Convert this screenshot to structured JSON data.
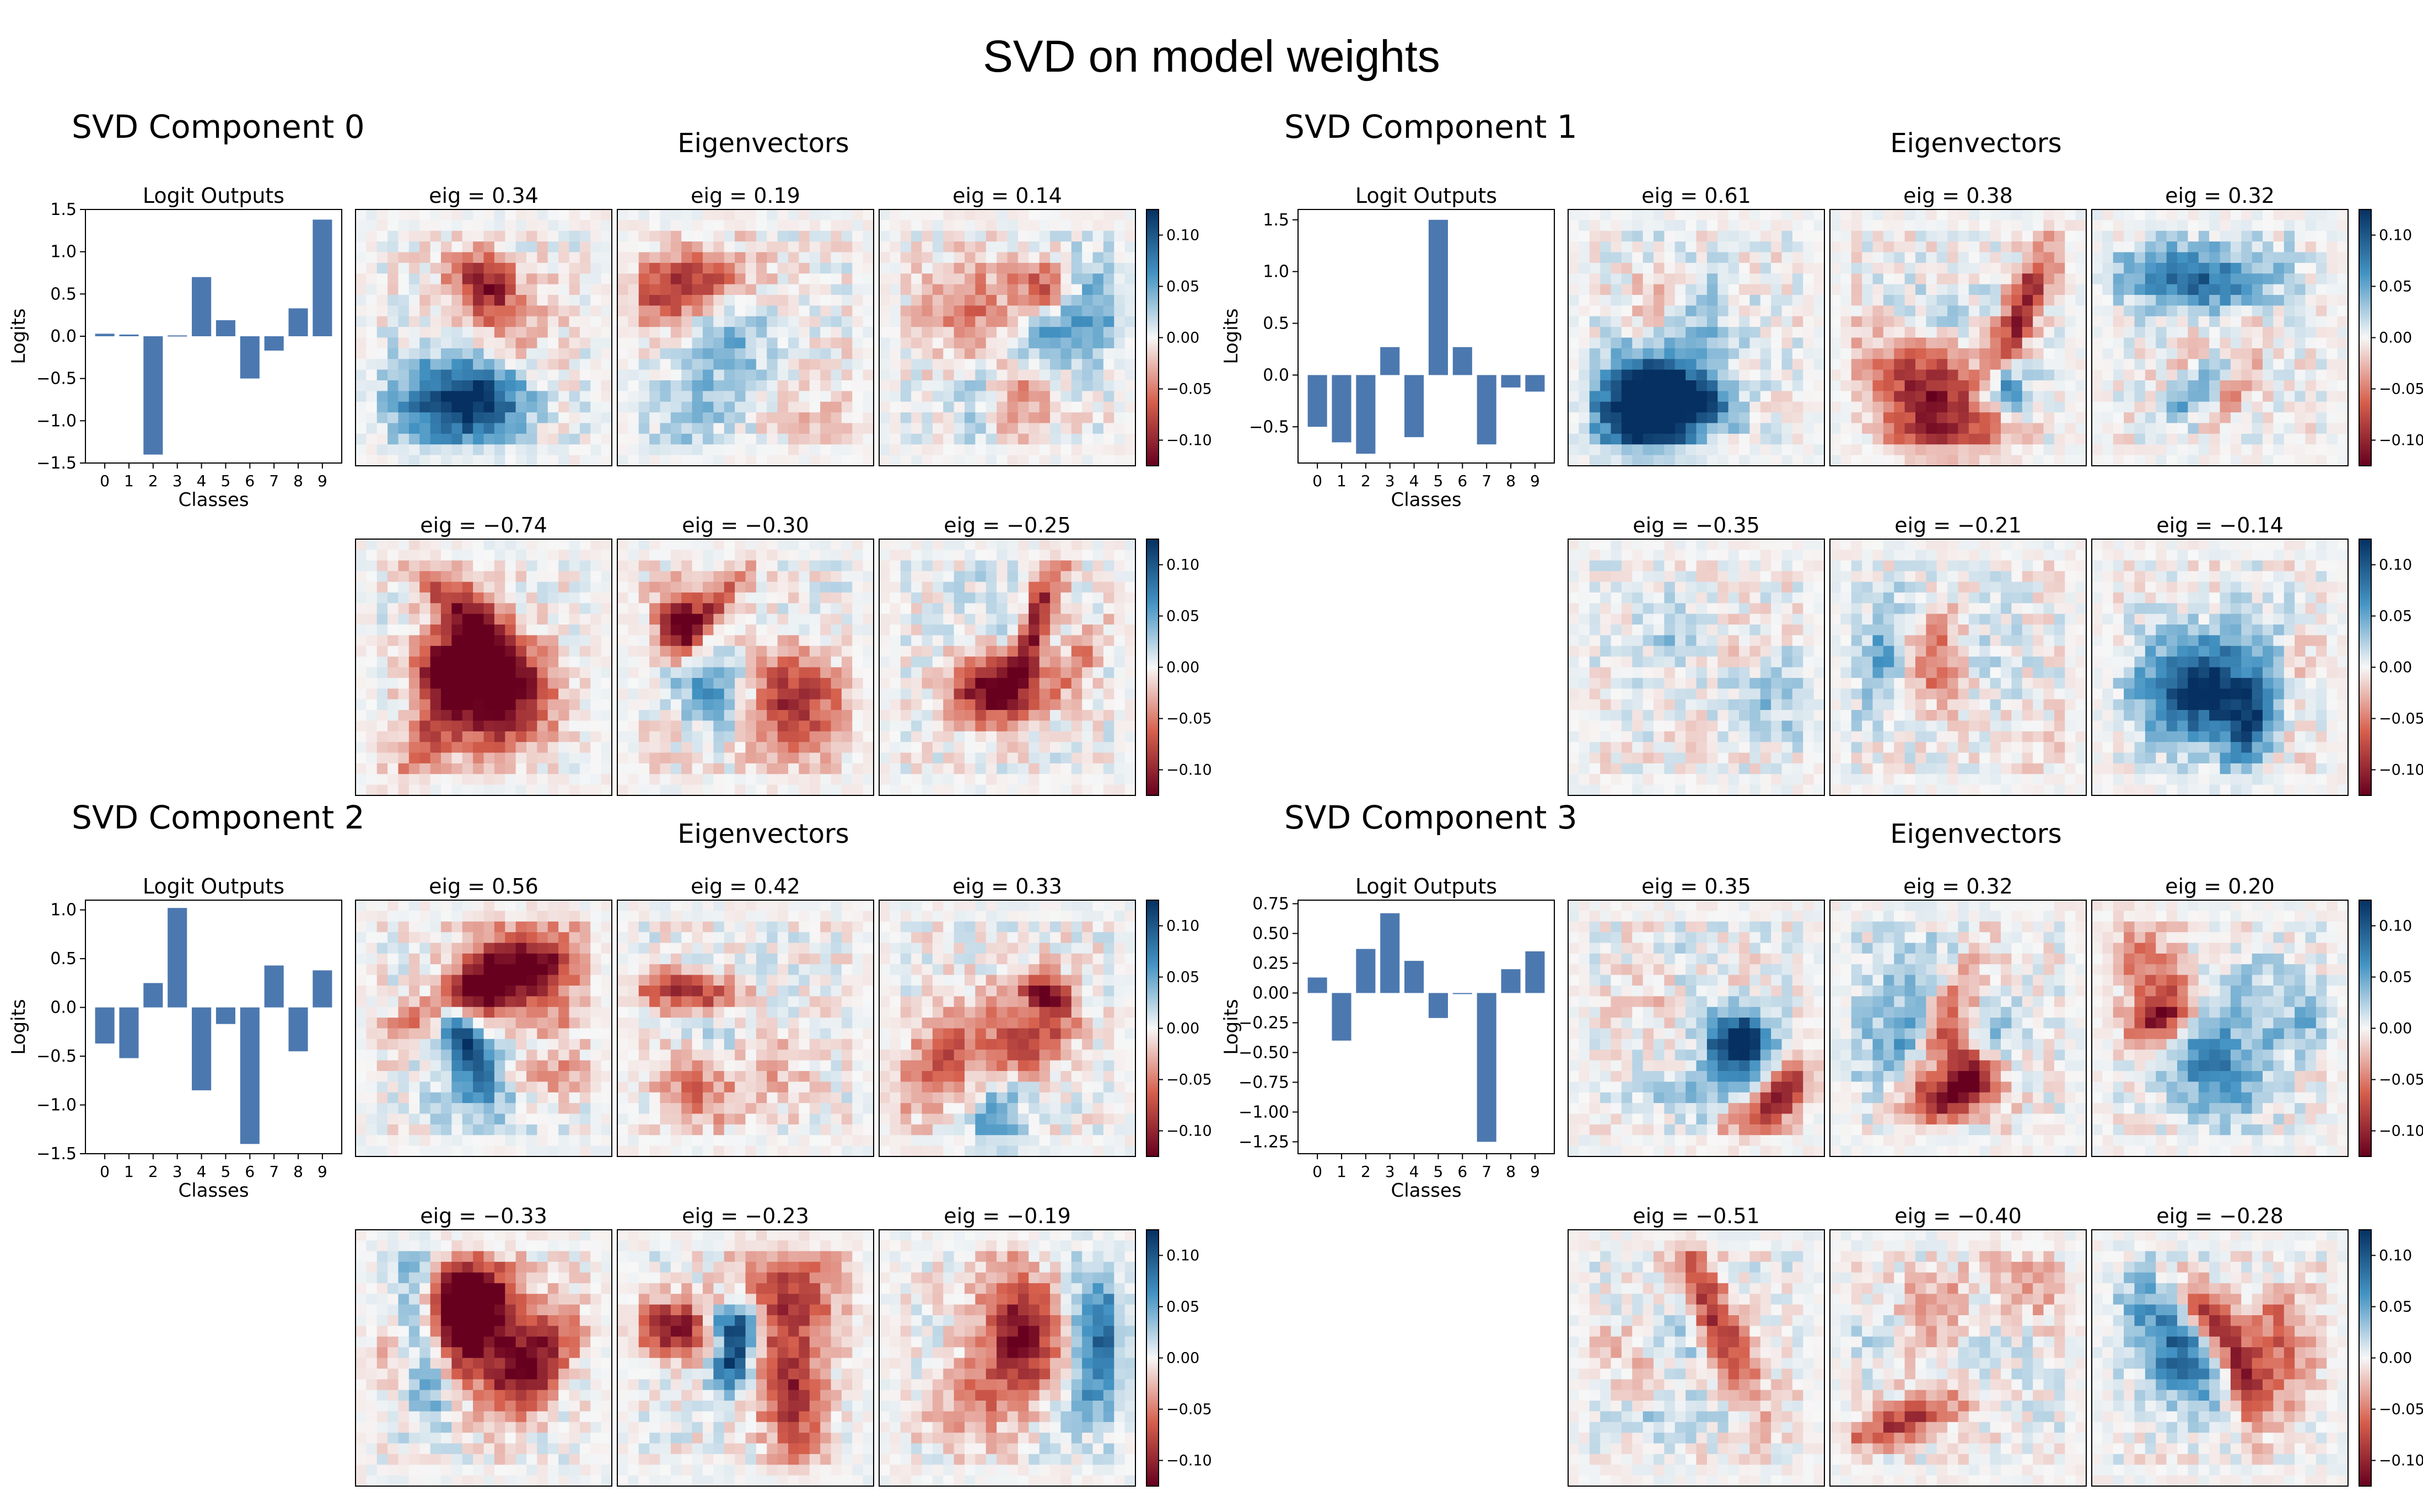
{
  "figure": {
    "title": "SVD on model weights"
  },
  "labels": {
    "eigenvectors_title": "Eigenvectors",
    "logit_title": "Logit Outputs",
    "xlabel": "Classes",
    "ylabel": "Logits",
    "eig_prefix": "eig = "
  },
  "colormap": {
    "name": "RdBu",
    "negative": "#67001f",
    "neutral": "#f7f7f7",
    "positive": "#053061",
    "range": [
      -0.125,
      0.125
    ],
    "ticks": [
      "0.10",
      "0.05",
      "0.00",
      "−0.05",
      "−0.10"
    ],
    "tick_values": [
      0.1,
      0.05,
      0.0,
      -0.05,
      -0.1
    ]
  },
  "chart_data": [
    {
      "type": "bar",
      "title": "SVD Component 0",
      "subtitle": "Logit Outputs",
      "xlabel": "Classes",
      "ylabel": "Logits",
      "categories": [
        "0",
        "1",
        "2",
        "3",
        "4",
        "5",
        "6",
        "7",
        "8",
        "9"
      ],
      "values": [
        0.03,
        0.02,
        -1.4,
        0.01,
        0.7,
        0.19,
        -0.5,
        -0.17,
        0.33,
        1.38
      ],
      "ylim": [
        -1.5,
        1.5
      ],
      "yticks": [
        "1.5",
        "1.0",
        "0.5",
        "0.0",
        "−0.5",
        "−1.0",
        "−1.5"
      ],
      "ytick_values": [
        1.5,
        1.0,
        0.5,
        0.0,
        -0.5,
        -1.0,
        -1.5
      ],
      "color": "#4c78b0",
      "eigenvalues": [
        "0.34",
        "0.19",
        "0.14",
        "-0.74",
        "-0.30",
        "-0.25"
      ]
    },
    {
      "type": "bar",
      "title": "SVD Component 1",
      "subtitle": "Logit Outputs",
      "xlabel": "Classes",
      "ylabel": "Logits",
      "categories": [
        "0",
        "1",
        "2",
        "3",
        "4",
        "5",
        "6",
        "7",
        "8",
        "9"
      ],
      "values": [
        -0.5,
        -0.65,
        -0.76,
        0.27,
        -0.6,
        1.5,
        0.27,
        -0.67,
        -0.12,
        -0.16
      ],
      "ylim": [
        -0.85,
        1.6
      ],
      "yticks": [
        "1.5",
        "1.0",
        "0.5",
        "0.0",
        "−0.5"
      ],
      "ytick_values": [
        1.5,
        1.0,
        0.5,
        0.0,
        -0.5
      ],
      "color": "#4c78b0",
      "eigenvalues": [
        "0.61",
        "0.38",
        "0.32",
        "-0.35",
        "-0.21",
        "-0.14"
      ]
    },
    {
      "type": "bar",
      "title": "SVD Component 2",
      "subtitle": "Logit Outputs",
      "xlabel": "Classes",
      "ylabel": "Logits",
      "categories": [
        "0",
        "1",
        "2",
        "3",
        "4",
        "5",
        "6",
        "7",
        "8",
        "9"
      ],
      "values": [
        -0.37,
        -0.52,
        0.25,
        1.02,
        -0.85,
        -0.17,
        -1.4,
        0.43,
        -0.45,
        0.38
      ],
      "ylim": [
        -1.5,
        1.1
      ],
      "yticks": [
        "1.0",
        "0.5",
        "0.0",
        "−0.5",
        "−1.0",
        "−1.5"
      ],
      "ytick_values": [
        1.0,
        0.5,
        0.0,
        -0.5,
        -1.0,
        -1.5
      ],
      "color": "#4c78b0",
      "eigenvalues": [
        "0.56",
        "0.42",
        "0.33",
        "-0.33",
        "-0.23",
        "-0.19"
      ]
    },
    {
      "type": "bar",
      "title": "SVD Component 3",
      "subtitle": "Logit Outputs",
      "xlabel": "Classes",
      "ylabel": "Logits",
      "categories": [
        "0",
        "1",
        "2",
        "3",
        "4",
        "5",
        "6",
        "7",
        "8",
        "9"
      ],
      "values": [
        0.13,
        -0.4,
        0.37,
        0.67,
        0.27,
        -0.21,
        0.0,
        -1.25,
        0.2,
        0.35
      ],
      "ylim": [
        -1.35,
        0.78
      ],
      "yticks": [
        "0.75",
        "0.50",
        "0.25",
        "0.00",
        "−0.25",
        "−0.50",
        "−0.75",
        "−1.00",
        "−1.25"
      ],
      "ytick_values": [
        0.75,
        0.5,
        0.25,
        0.0,
        -0.25,
        -0.5,
        -0.75,
        -1.0,
        -1.25
      ],
      "color": "#4c78b0",
      "eigenvalues": [
        "0.35",
        "0.32",
        "0.20",
        "-0.51",
        "-0.40",
        "-0.28"
      ]
    }
  ]
}
